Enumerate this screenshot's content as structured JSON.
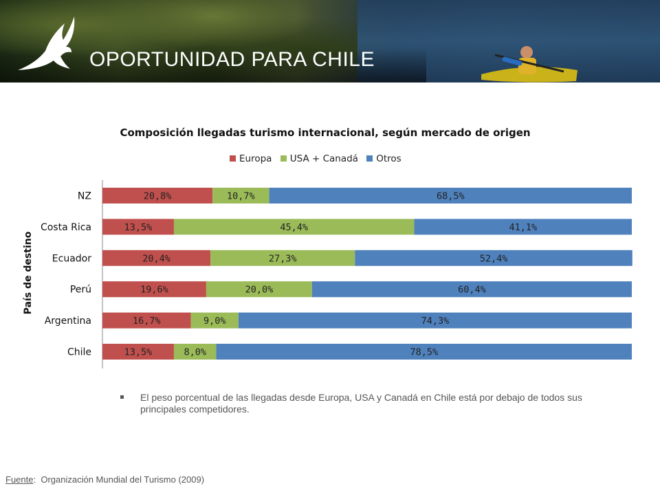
{
  "header": {
    "title": "OPORTUNIDAD PARA CHILE"
  },
  "chart_data": {
    "type": "bar",
    "orientation": "horizontal",
    "stacked": true,
    "title": "Composición  llegadas turismo internacional, según mercado de origen",
    "ylabel": "País de destino",
    "xlabel": "",
    "xlim": [
      0,
      100
    ],
    "legend_position": "top",
    "categories": [
      "NZ",
      "Costa Rica",
      "Ecuador",
      "Perú",
      "Argentina",
      "Chile"
    ],
    "series": [
      {
        "name": "Europa",
        "color": "#c0504d",
        "values": [
          20.8,
          13.5,
          20.4,
          19.6,
          16.7,
          13.5
        ],
        "labels": [
          "20,8%",
          "13,5%",
          "20,4%",
          "19,6%",
          "16,7%",
          "13,5%"
        ]
      },
      {
        "name": "USA + Canadá",
        "color": "#9bbb59",
        "values": [
          10.7,
          45.4,
          27.3,
          20.0,
          9.0,
          8.0
        ],
        "labels": [
          "10,7%",
          "45,4%",
          "27,3%",
          "20,0%",
          "9,0%",
          "8,0%"
        ]
      },
      {
        "name": "Otros",
        "color": "#4f81bd",
        "values": [
          68.5,
          41.1,
          52.4,
          60.4,
          74.3,
          78.5
        ],
        "labels": [
          "68,5%",
          "41,1%",
          "52,4%",
          "60,4%",
          "74,3%",
          "78,5%"
        ]
      }
    ]
  },
  "note": {
    "text": "El peso porcentual de las llegadas desde Europa, USA y Canadá en Chile está por debajo de todos sus principales competidores."
  },
  "source": {
    "label": "Fuente",
    "text": "Organización Mundial del Turismo  (2009)"
  }
}
